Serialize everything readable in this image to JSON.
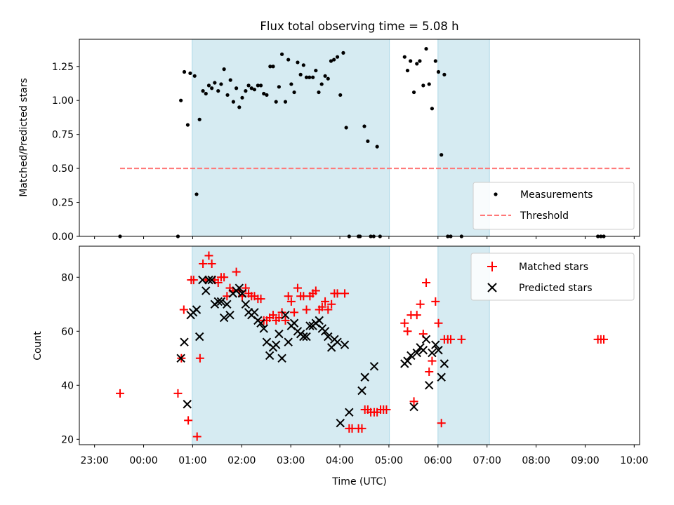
{
  "chart_data": {
    "type": "scatter",
    "title": "Flux total observing time = 5.08 h",
    "xlabel": "Time (UTC)",
    "x_unit": "hours since 23:00 UTC",
    "xlim": [
      -0.31,
      11.11
    ],
    "xticks": [
      {
        "x": 0,
        "label": "23:00"
      },
      {
        "x": 1,
        "label": "00:00"
      },
      {
        "x": 2,
        "label": "01:00"
      },
      {
        "x": 3,
        "label": "02:00"
      },
      {
        "x": 4,
        "label": "03:00"
      },
      {
        "x": 5,
        "label": "04:00"
      },
      {
        "x": 6,
        "label": "05:00"
      },
      {
        "x": 7,
        "label": "06:00"
      },
      {
        "x": 8,
        "label": "07:00"
      },
      {
        "x": 9,
        "label": "08:00"
      },
      {
        "x": 10,
        "label": "09:00"
      },
      {
        "x": 11,
        "label": "10:00"
      }
    ],
    "shaded_intervals": [
      [
        1.99,
        6.01
      ],
      [
        7.0,
        8.05
      ]
    ],
    "top": {
      "ylabel": "Matched/Predicted stars",
      "ylim": [
        0,
        1.45
      ],
      "yticks": [
        {
          "y": 0.0,
          "label": "0.00"
        },
        {
          "y": 0.25,
          "label": "0.25"
        },
        {
          "y": 0.5,
          "label": "0.50"
        },
        {
          "y": 0.75,
          "label": "0.75"
        },
        {
          "y": 1.0,
          "label": "1.00"
        },
        {
          "y": 1.25,
          "label": "1.25"
        }
      ],
      "threshold": {
        "name": "Threshold",
        "value": 0.5,
        "x_range": [
          0.52,
          10.91
        ],
        "color": "#ff7777"
      },
      "measurements": {
        "name": "Measurements",
        "color": "#000000",
        "points": [
          [
            0.52,
            0.0
          ],
          [
            1.7,
            0.0
          ],
          [
            1.76,
            1.0
          ],
          [
            1.83,
            1.21
          ],
          [
            1.9,
            0.82
          ],
          [
            1.95,
            1.2
          ],
          [
            2.04,
            1.18
          ],
          [
            2.08,
            0.31
          ],
          [
            2.14,
            0.86
          ],
          [
            2.21,
            1.07
          ],
          [
            2.27,
            1.05
          ],
          [
            2.33,
            1.11
          ],
          [
            2.39,
            1.09
          ],
          [
            2.45,
            1.13
          ],
          [
            2.52,
            1.07
          ],
          [
            2.58,
            1.12
          ],
          [
            2.64,
            1.23
          ],
          [
            2.71,
            1.04
          ],
          [
            2.77,
            1.15
          ],
          [
            2.83,
            0.99
          ],
          [
            2.89,
            1.09
          ],
          [
            2.95,
            0.95
          ],
          [
            3.01,
            1.02
          ],
          [
            3.08,
            1.07
          ],
          [
            3.14,
            1.11
          ],
          [
            3.2,
            1.09
          ],
          [
            3.26,
            1.08
          ],
          [
            3.33,
            1.11
          ],
          [
            3.39,
            1.11
          ],
          [
            3.45,
            1.05
          ],
          [
            3.51,
            1.04
          ],
          [
            3.58,
            1.25
          ],
          [
            3.64,
            1.25
          ],
          [
            3.7,
            0.99
          ],
          [
            3.76,
            1.1
          ],
          [
            3.82,
            1.34
          ],
          [
            3.89,
            0.99
          ],
          [
            3.95,
            1.3
          ],
          [
            4.01,
            1.12
          ],
          [
            4.07,
            1.06
          ],
          [
            4.14,
            1.28
          ],
          [
            4.2,
            1.19
          ],
          [
            4.26,
            1.26
          ],
          [
            4.32,
            1.17
          ],
          [
            4.38,
            1.17
          ],
          [
            4.45,
            1.17
          ],
          [
            4.51,
            1.22
          ],
          [
            4.57,
            1.06
          ],
          [
            4.63,
            1.12
          ],
          [
            4.7,
            1.18
          ],
          [
            4.76,
            1.16
          ],
          [
            4.82,
            1.29
          ],
          [
            4.88,
            1.3
          ],
          [
            4.95,
            1.32
          ],
          [
            5.01,
            1.04
          ],
          [
            5.07,
            1.35
          ],
          [
            5.13,
            0.8
          ],
          [
            5.19,
            0.0
          ],
          [
            5.38,
            0.0
          ],
          [
            5.41,
            0.0
          ],
          [
            5.5,
            0.81
          ],
          [
            5.57,
            0.7
          ],
          [
            5.63,
            0.0
          ],
          [
            5.69,
            0.0
          ],
          [
            5.76,
            0.66
          ],
          [
            5.82,
            0.0
          ],
          [
            6.32,
            1.32
          ],
          [
            6.38,
            1.22
          ],
          [
            6.44,
            1.29
          ],
          [
            6.51,
            1.06
          ],
          [
            6.57,
            1.27
          ],
          [
            6.63,
            1.29
          ],
          [
            6.7,
            1.11
          ],
          [
            6.76,
            1.38
          ],
          [
            6.82,
            1.12
          ],
          [
            6.88,
            0.94
          ],
          [
            6.95,
            1.29
          ],
          [
            7.01,
            1.21
          ],
          [
            7.07,
            0.6
          ],
          [
            7.13,
            1.19
          ],
          [
            7.2,
            0.0
          ],
          [
            7.26,
            0.0
          ],
          [
            7.48,
            0.0
          ],
          [
            10.26,
            0.0
          ],
          [
            10.32,
            0.0
          ],
          [
            10.38,
            0.0
          ]
        ]
      }
    },
    "bottom": {
      "ylabel": "Count",
      "ylim": [
        18,
        91.5
      ],
      "yticks": [
        {
          "y": 20,
          "label": "20"
        },
        {
          "y": 40,
          "label": "40"
        },
        {
          "y": 60,
          "label": "60"
        },
        {
          "y": 80,
          "label": "80"
        }
      ],
      "series": [
        {
          "name": "Matched stars",
          "marker": "plus",
          "color": "#ff0000",
          "points": [
            [
              0.52,
              37
            ],
            [
              1.7,
              37
            ],
            [
              1.77,
              50
            ],
            [
              1.82,
              68
            ],
            [
              1.91,
              27
            ],
            [
              1.97,
              79
            ],
            [
              2.02,
              79
            ],
            [
              2.09,
              21
            ],
            [
              2.15,
              50
            ],
            [
              2.21,
              85
            ],
            [
              2.27,
              79
            ],
            [
              2.33,
              88
            ],
            [
              2.39,
              85
            ],
            [
              2.45,
              79
            ],
            [
              2.52,
              78
            ],
            [
              2.58,
              80
            ],
            [
              2.64,
              80
            ],
            [
              2.7,
              73
            ],
            [
              2.76,
              76
            ],
            [
              2.82,
              75
            ],
            [
              2.89,
              82
            ],
            [
              2.95,
              75
            ],
            [
              3.01,
              73
            ],
            [
              3.08,
              76
            ],
            [
              3.14,
              74
            ],
            [
              3.2,
              73
            ],
            [
              3.26,
              73
            ],
            [
              3.33,
              72
            ],
            [
              3.39,
              72
            ],
            [
              3.45,
              64
            ],
            [
              3.51,
              64
            ],
            [
              3.57,
              65
            ],
            [
              3.64,
              66
            ],
            [
              3.7,
              64
            ],
            [
              3.76,
              65
            ],
            [
              3.82,
              67
            ],
            [
              3.89,
              64
            ],
            [
              3.95,
              73
            ],
            [
              4.01,
              71
            ],
            [
              4.07,
              67
            ],
            [
              4.14,
              76
            ],
            [
              4.2,
              73
            ],
            [
              4.26,
              73
            ],
            [
              4.32,
              68
            ],
            [
              4.39,
              73
            ],
            [
              4.45,
              74
            ],
            [
              4.51,
              75
            ],
            [
              4.58,
              68
            ],
            [
              4.64,
              69
            ],
            [
              4.7,
              71
            ],
            [
              4.76,
              68
            ],
            [
              4.83,
              70
            ],
            [
              4.89,
              74
            ],
            [
              4.95,
              74
            ],
            [
              5.1,
              74
            ],
            [
              5.19,
              24
            ],
            [
              5.25,
              24
            ],
            [
              5.38,
              24
            ],
            [
              5.45,
              24
            ],
            [
              5.51,
              31
            ],
            [
              5.57,
              31
            ],
            [
              5.63,
              30
            ],
            [
              5.7,
              30
            ],
            [
              5.76,
              30
            ],
            [
              5.83,
              31
            ],
            [
              5.89,
              31
            ],
            [
              5.95,
              31
            ],
            [
              6.32,
              63
            ],
            [
              6.38,
              60
            ],
            [
              6.45,
              66
            ],
            [
              6.51,
              34
            ],
            [
              6.57,
              66
            ],
            [
              6.64,
              70
            ],
            [
              6.7,
              59
            ],
            [
              6.76,
              78
            ],
            [
              6.82,
              45
            ],
            [
              6.88,
              49
            ],
            [
              6.95,
              71
            ],
            [
              7.01,
              63
            ],
            [
              7.07,
              26
            ],
            [
              7.13,
              57
            ],
            [
              7.2,
              57
            ],
            [
              7.26,
              57
            ],
            [
              7.48,
              57
            ],
            [
              10.26,
              57
            ],
            [
              10.32,
              57
            ],
            [
              10.38,
              57
            ]
          ]
        },
        {
          "name": "Predicted stars",
          "marker": "x",
          "color": "#000000",
          "points": [
            [
              1.76,
              50
            ],
            [
              1.83,
              56
            ],
            [
              1.89,
              33
            ],
            [
              1.96,
              66
            ],
            [
              2.01,
              67
            ],
            [
              2.08,
              68
            ],
            [
              2.14,
              58
            ],
            [
              2.2,
              79
            ],
            [
              2.27,
              75
            ],
            [
              2.33,
              79
            ],
            [
              2.39,
              79
            ],
            [
              2.45,
              70
            ],
            [
              2.52,
              71
            ],
            [
              2.58,
              71
            ],
            [
              2.64,
              65
            ],
            [
              2.7,
              70
            ],
            [
              2.76,
              66
            ],
            [
              2.82,
              74
            ],
            [
              2.89,
              75
            ],
            [
              2.95,
              76
            ],
            [
              3.01,
              74
            ],
            [
              3.08,
              70
            ],
            [
              3.14,
              67
            ],
            [
              3.2,
              66
            ],
            [
              3.26,
              67
            ],
            [
              3.33,
              64
            ],
            [
              3.39,
              63
            ],
            [
              3.45,
              61
            ],
            [
              3.51,
              56
            ],
            [
              3.57,
              51
            ],
            [
              3.64,
              54
            ],
            [
              3.7,
              55
            ],
            [
              3.76,
              59
            ],
            [
              3.82,
              50
            ],
            [
              3.89,
              66
            ],
            [
              3.95,
              56
            ],
            [
              4.01,
              62
            ],
            [
              4.07,
              63
            ],
            [
              4.14,
              60
            ],
            [
              4.2,
              59
            ],
            [
              4.26,
              58
            ],
            [
              4.32,
              58
            ],
            [
              4.39,
              62
            ],
            [
              4.45,
              62
            ],
            [
              4.51,
              63
            ],
            [
              4.58,
              64
            ],
            [
              4.64,
              61
            ],
            [
              4.7,
              60
            ],
            [
              4.76,
              58
            ],
            [
              4.83,
              54
            ],
            [
              4.89,
              57
            ],
            [
              4.95,
              56
            ],
            [
              5.01,
              26
            ],
            [
              5.1,
              55
            ],
            [
              5.19,
              30
            ],
            [
              5.45,
              38
            ],
            [
              5.51,
              43
            ],
            [
              5.7,
              47
            ],
            [
              6.32,
              48
            ],
            [
              6.38,
              49
            ],
            [
              6.45,
              51
            ],
            [
              6.51,
              32
            ],
            [
              6.57,
              52
            ],
            [
              6.64,
              54
            ],
            [
              6.7,
              53
            ],
            [
              6.76,
              57
            ],
            [
              6.82,
              40
            ],
            [
              6.88,
              52
            ],
            [
              6.95,
              55
            ],
            [
              7.01,
              53
            ],
            [
              7.07,
              43
            ],
            [
              7.13,
              48
            ]
          ]
        }
      ]
    }
  }
}
